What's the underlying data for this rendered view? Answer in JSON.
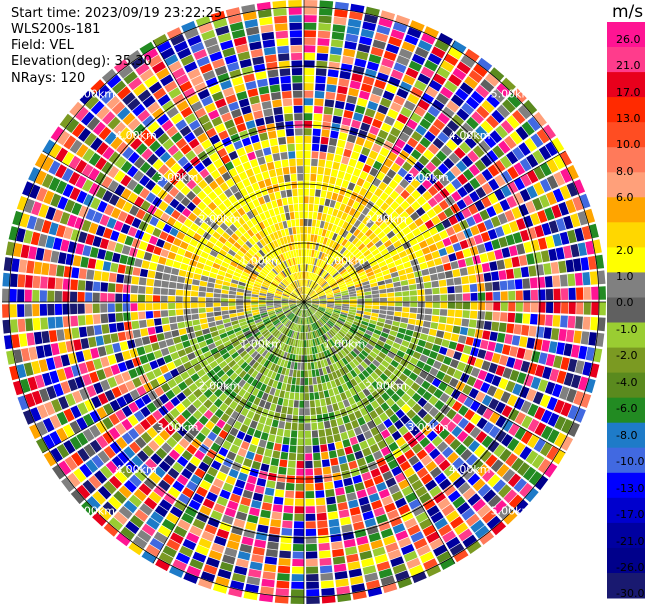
{
  "info": {
    "start_time": "Start time: 2023/09/19 23:22:25",
    "instrument": "WLS200s-181",
    "field": "Field: VEL",
    "elevation": "Elevation(deg): 35.30",
    "nrays": "NRays: 120"
  },
  "colorbar": {
    "unit": "m/s",
    "ticks": [
      "26.0",
      "21.0",
      "17.0",
      "13.0",
      "10.0",
      "8.0",
      "6.0",
      "2.0",
      "1.0",
      "0.0",
      "-1.0",
      "-2.0",
      "-4.0",
      "-6.0",
      "-8.0",
      "-10.0",
      "-13.0",
      "-17.0",
      "-21.0",
      "-26.0",
      "-30.0"
    ],
    "colors": [
      "#ff1493",
      "#ff3c8c",
      "#e8001c",
      "#ff2a00",
      "#ff4d22",
      "#ff7a5a",
      "#ffa07a",
      "#ffa500",
      "#ffd700",
      "#ffff00",
      "#808080",
      "#606060",
      "#9acd32",
      "#7b9a22",
      "#5a8a1e",
      "#228b22",
      "#1e7bc8",
      "#4169e1",
      "#0000ff",
      "#0000cd",
      "#0000a0",
      "#00008b",
      "#191970"
    ]
  },
  "chart_data": {
    "type": "heatmap",
    "subtype": "radar-ppi",
    "rings_km": [
      "1.00km",
      "2.00km",
      "3.00km",
      "4.00km",
      "5.00km"
    ],
    "field": "VEL",
    "unit": "m/s",
    "nrays": 120,
    "value_range": [
      -30,
      26
    ],
    "pattern": {
      "north_quadrants": "positive velocities 1 to 6 m/s (yellow/orange) within ~2.5 km",
      "south_quadrants": "negative velocities -2 to -8 m/s (greens) within ~2.5 km",
      "outer_ranges": "noise (random colors) beyond ~3 km"
    }
  }
}
